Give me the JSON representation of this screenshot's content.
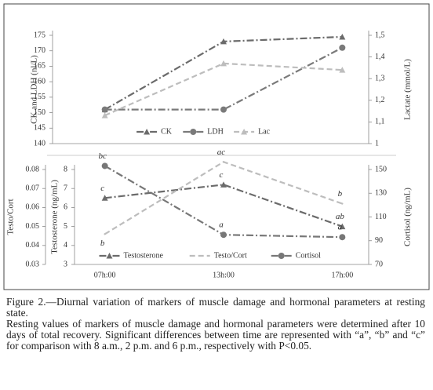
{
  "chart_data": [
    {
      "type": "line",
      "ylabel": "CK and LDH (nl/L)",
      "y2label": "Lactate (mmol/L)",
      "ylim": [
        140,
        175
      ],
      "yticks": [
        140,
        145,
        150,
        155,
        160,
        165,
        170,
        175
      ],
      "y2lim": [
        1,
        1.5
      ],
      "y2ticks": [
        1,
        {
          "value": 1.1,
          "label": "1,1"
        },
        {
          "value": 1.2,
          "label": "1,2"
        },
        {
          "value": 1.3,
          "label": "1,3"
        },
        {
          "value": 1.4,
          "label": "1,4"
        },
        {
          "value": 1.5,
          "label": "1,5"
        }
      ],
      "legend": "bottom",
      "series": [
        {
          "name": "CK",
          "color": "#6b6b6b",
          "marker": "triangle",
          "dash": "dashdot",
          "values": [
            151,
            173,
            174.5
          ]
        },
        {
          "name": "LDH",
          "color": "#7a7a7a",
          "marker": "circle",
          "dash": "dashdot",
          "values": [
            151,
            151,
            171
          ]
        },
        {
          "name": "Lac",
          "color": "#bdbdbd",
          "marker": "triangle",
          "dash": "dash",
          "axis": "y2",
          "values": [
            1.13,
            1.37,
            1.34
          ]
        }
      ]
    },
    {
      "type": "line",
      "categories": [
        "07h:00",
        "13h:00",
        "17h:00"
      ],
      "ylabel": "Testosterone (ng/mL)",
      "y2label": "Cortisol (ng/mL)",
      "y3label": "Testo/Cort",
      "ylim": [
        3,
        8
      ],
      "yticks": [
        3,
        4,
        5,
        6,
        7,
        8
      ],
      "y2lim": [
        70,
        150
      ],
      "y2ticks": [
        70,
        90,
        110,
        130,
        150
      ],
      "y3lim": [
        0.03,
        0.08
      ],
      "y3ticks": [
        0.03,
        0.04,
        0.05,
        0.06,
        0.07,
        0.08
      ],
      "legend": "bottom",
      "series": [
        {
          "name": "Testosterone",
          "color": "#6b6b6b",
          "marker": "triangle",
          "dash": "dashdot",
          "values": [
            6.5,
            7.2,
            5.0
          ]
        },
        {
          "name": "Testo/Cort",
          "color": "#bdbdbd",
          "marker": "none",
          "dash": "dash",
          "axis": "y3",
          "values": [
            0.046,
            0.084,
            0.062
          ]
        },
        {
          "name": "Cortisol",
          "color": "#777777",
          "marker": "circle",
          "dash": "dashdot",
          "axis": "y2",
          "values": [
            153,
            95,
            93
          ]
        }
      ],
      "annotations": [
        {
          "text": "bc",
          "category": "07h:00",
          "series": "Cortisol"
        },
        {
          "text": "c",
          "category": "07h:00",
          "series": "Testosterone"
        },
        {
          "text": "b",
          "category": "07h:00",
          "series": "Testo/Cort"
        },
        {
          "text": "ac",
          "category": "13h:00",
          "series": "Testo/Cort"
        },
        {
          "text": "c",
          "category": "13h:00",
          "series": "Testosterone"
        },
        {
          "text": "a",
          "category": "13h:00",
          "series": "Cortisol"
        },
        {
          "text": "b",
          "category": "17h:00",
          "series": "Testo/Cort"
        },
        {
          "text": "ab",
          "category": "17h:00",
          "series": "Testosterone"
        },
        {
          "text": "a",
          "category": "17h:00",
          "series": "Cortisol"
        }
      ]
    }
  ],
  "caption": {
    "title": "Figure 2.—Diurnal variation of markers of muscle damage and hormonal parameters at resting state.",
    "body": "Resting values of markers of muscle damage and hormonal parameters were determined after 10 days of total recovery. Significant differences between time are represented with “a”, “b” and “c” for comparison with 8 a.m., 2 p.m. and 6 p.m., respectively with P<0.05."
  }
}
